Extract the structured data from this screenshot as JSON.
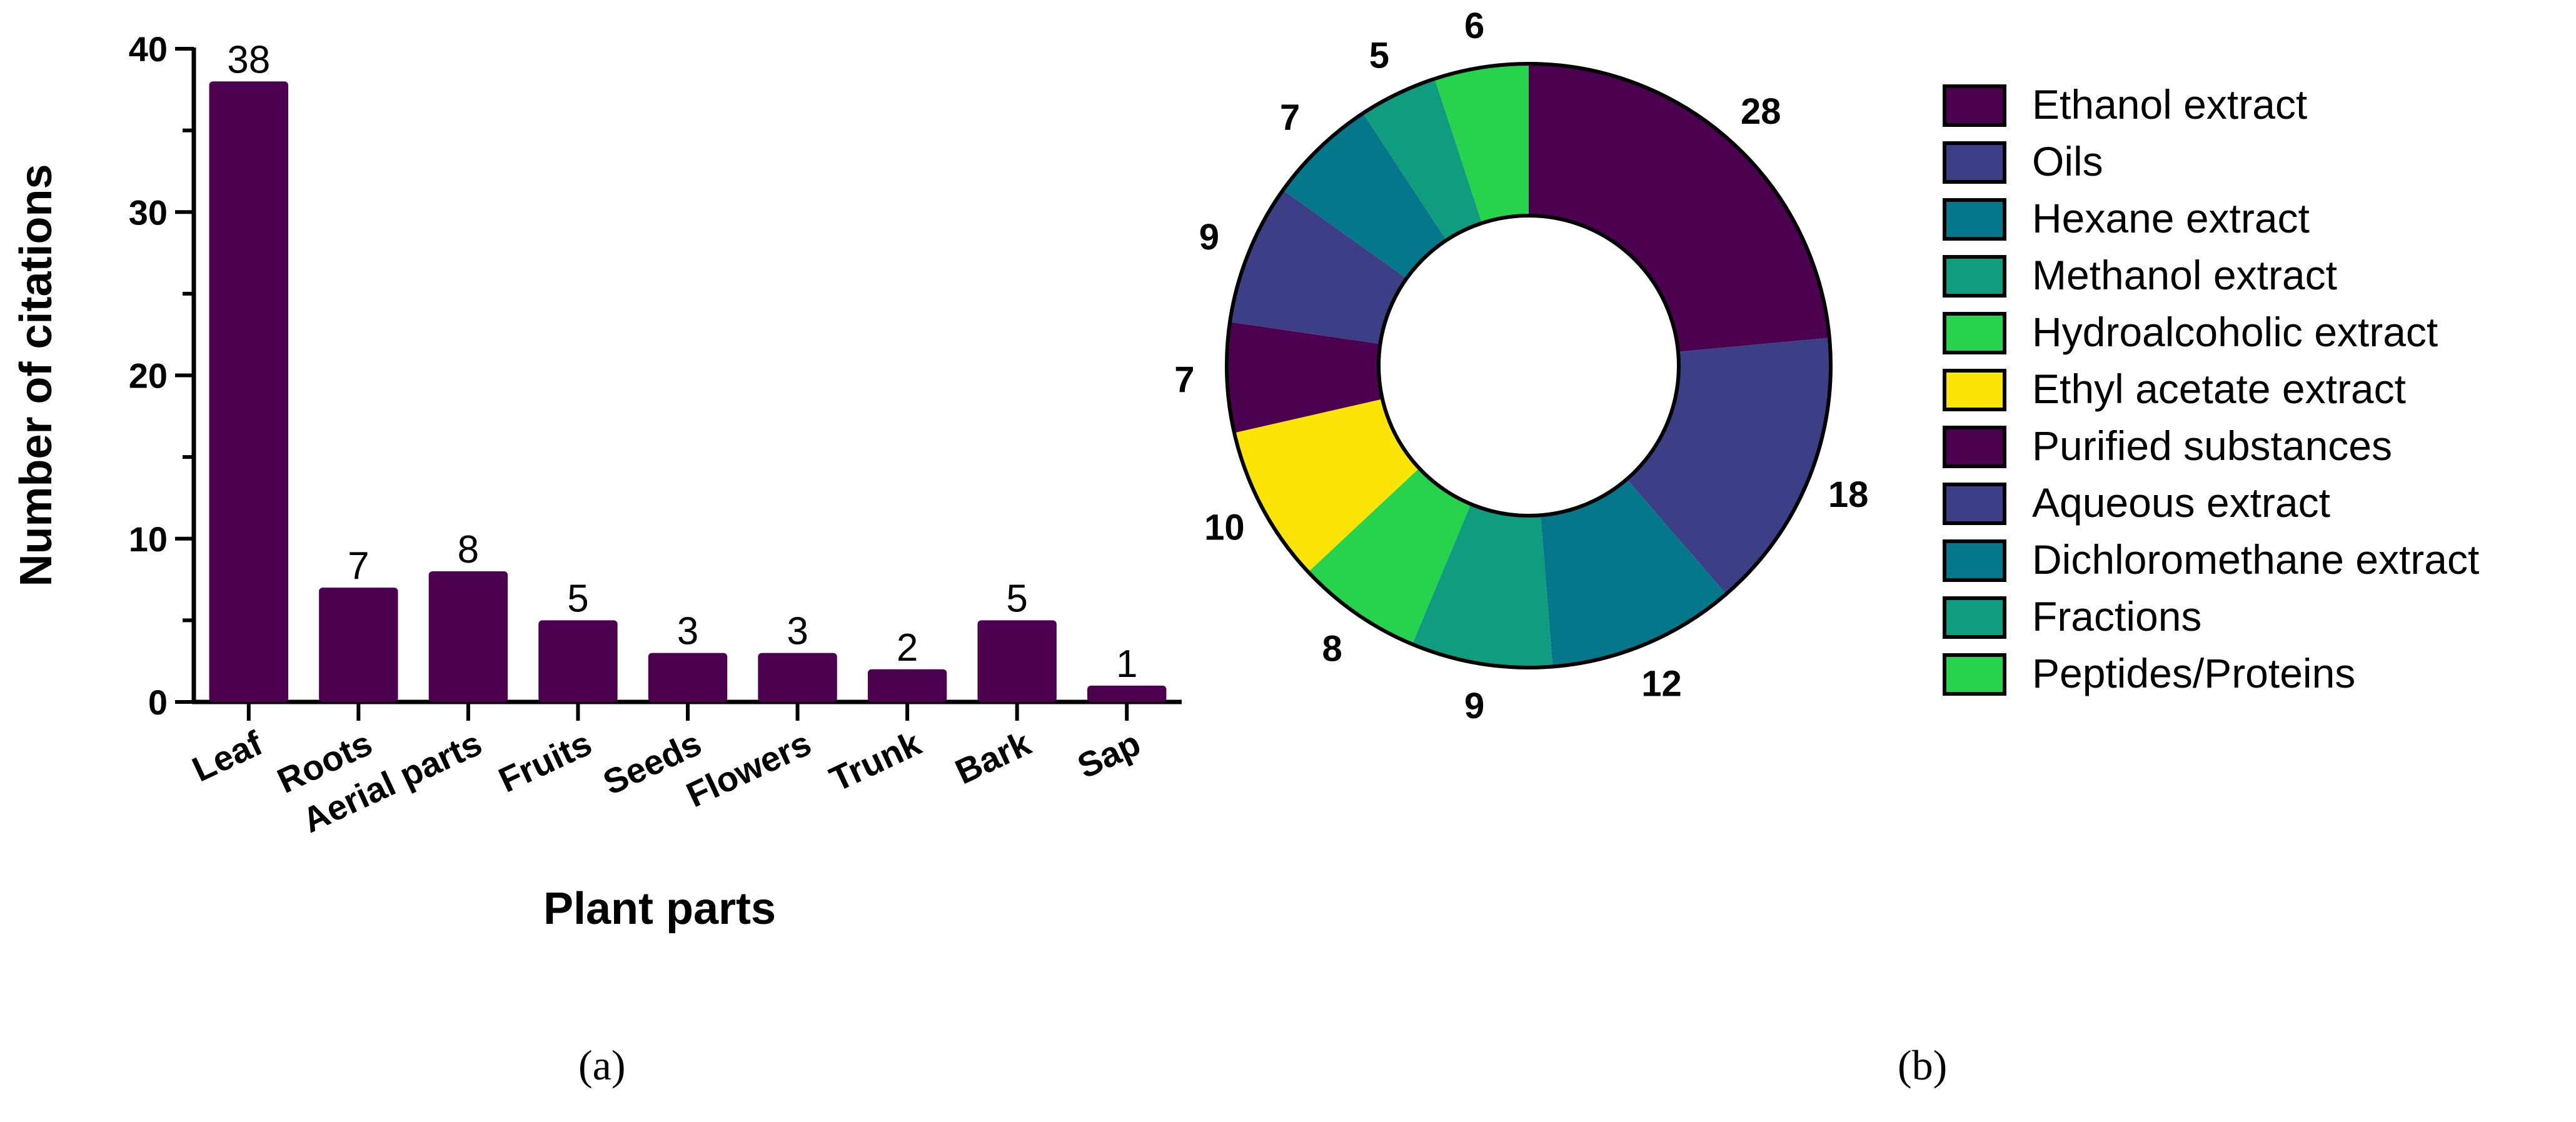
{
  "panels": {
    "a_label": "(a)",
    "b_label": "(b)"
  },
  "chart_data": [
    {
      "type": "bar",
      "title": "",
      "xlabel": "Plant parts",
      "ylabel": "Number of citations",
      "categories": [
        "Leaf",
        "Roots",
        "Aerial parts",
        "Fruits",
        "Seeds",
        "Flowers",
        "Trunk",
        "Bark",
        "Sap"
      ],
      "values": [
        38,
        7,
        8,
        5,
        3,
        3,
        2,
        5,
        1
      ],
      "data_labels": [
        "38",
        "7",
        "8",
        "5",
        "3",
        "3",
        "2",
        "5",
        "1"
      ],
      "ylim": [
        0,
        40
      ],
      "yticks": [
        0,
        10,
        20,
        30,
        40
      ],
      "grid": false,
      "bar_color": "#4b0050"
    },
    {
      "type": "pie",
      "subtype": "donut",
      "title": "",
      "labels": [
        "Ethanol extract",
        "Oils",
        "Hexane extract",
        "Methanol extract",
        "Hydroalcoholic extract",
        "Ethyl acetate extract",
        "Purified substances",
        "Aqueous extract",
        "Dichloromethane extract",
        "Fractions",
        "Peptides/Proteins"
      ],
      "values": [
        28,
        18,
        12,
        9,
        8,
        10,
        7,
        9,
        7,
        5,
        6
      ],
      "colors": [
        "#4b0050",
        "#3c3f86",
        "#05778a",
        "#0f9c7f",
        "#27d24c",
        "#fde407",
        "#4b0050",
        "#3c3f86",
        "#05778a",
        "#0f9c7f",
        "#27d24c"
      ],
      "legend_position": "right"
    }
  ]
}
